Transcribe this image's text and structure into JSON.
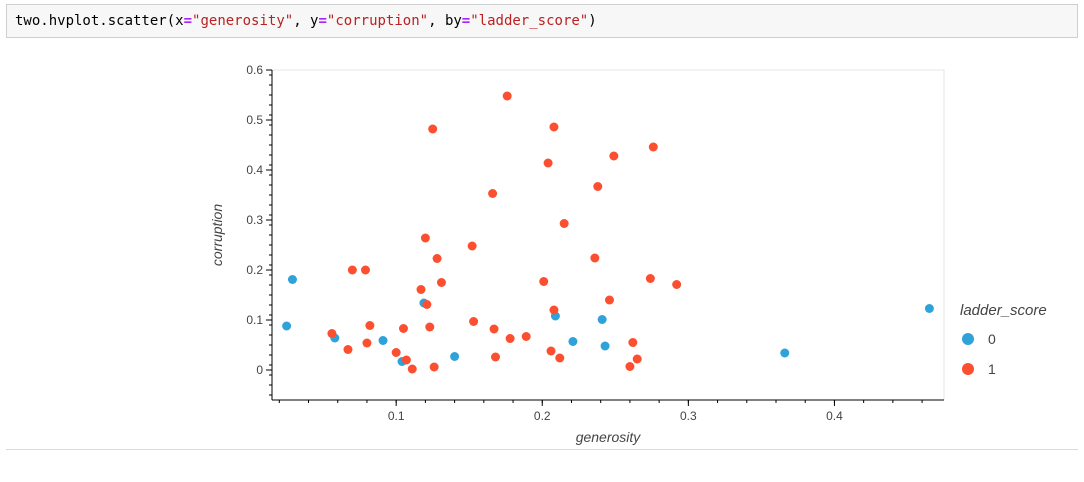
{
  "code_cell": {
    "prefix": "two.hvplot.scatter(",
    "arg_x_name": "x",
    "arg_x_value": "\"generosity\"",
    "arg_y_name": "y",
    "arg_y_value": "\"corruption\"",
    "arg_by_name": "by",
    "arg_by_value": "\"ladder_score\"",
    "sep": ", ",
    "eq": "=",
    "suffix": ")"
  },
  "colors": {
    "series_0": "#30a2da",
    "series_1": "#fc4f30",
    "axis": "#000000",
    "tick_text": "#444444",
    "label_text": "#444444",
    "code_bg": "#f7f7f7"
  },
  "chart_data": {
    "type": "scatter",
    "xlabel": "generosity",
    "ylabel": "corruption",
    "xlim": [
      0.015,
      0.475
    ],
    "ylim": [
      -0.06,
      0.6
    ],
    "xticks": [
      0.1,
      0.2,
      0.3,
      0.4
    ],
    "yticks": [
      0,
      0.1,
      0.2,
      0.3,
      0.4,
      0.5,
      0.6
    ],
    "grid": false,
    "legend": {
      "title": "ladder_score",
      "placement": "right"
    },
    "series": [
      {
        "name": "0",
        "points": [
          [
            0.025,
            0.088
          ],
          [
            0.029,
            0.181
          ],
          [
            0.058,
            0.064
          ],
          [
            0.091,
            0.059
          ],
          [
            0.104,
            0.017
          ],
          [
            0.119,
            0.134
          ],
          [
            0.14,
            0.027
          ],
          [
            0.209,
            0.108
          ],
          [
            0.221,
            0.057
          ],
          [
            0.241,
            0.101
          ],
          [
            0.243,
            0.048
          ],
          [
            0.366,
            0.034
          ],
          [
            0.465,
            0.123
          ]
        ]
      },
      {
        "name": "1",
        "points": [
          [
            0.056,
            0.073
          ],
          [
            0.067,
            0.041
          ],
          [
            0.07,
            0.2
          ],
          [
            0.08,
            0.054
          ],
          [
            0.079,
            0.2
          ],
          [
            0.082,
            0.089
          ],
          [
            0.1,
            0.035
          ],
          [
            0.105,
            0.083
          ],
          [
            0.107,
            0.02
          ],
          [
            0.111,
            0.002
          ],
          [
            0.117,
            0.161
          ],
          [
            0.12,
            0.264
          ],
          [
            0.121,
            0.131
          ],
          [
            0.123,
            0.086
          ],
          [
            0.125,
            0.482
          ],
          [
            0.126,
            0.006
          ],
          [
            0.128,
            0.223
          ],
          [
            0.131,
            0.175
          ],
          [
            0.152,
            0.248
          ],
          [
            0.153,
            0.097
          ],
          [
            0.166,
            0.353
          ],
          [
            0.167,
            0.082
          ],
          [
            0.168,
            0.026
          ],
          [
            0.176,
            0.548
          ],
          [
            0.178,
            0.063
          ],
          [
            0.189,
            0.067
          ],
          [
            0.201,
            0.177
          ],
          [
            0.204,
            0.414
          ],
          [
            0.206,
            0.038
          ],
          [
            0.208,
            0.12
          ],
          [
            0.208,
            0.486
          ],
          [
            0.212,
            0.024
          ],
          [
            0.215,
            0.293
          ],
          [
            0.236,
            0.224
          ],
          [
            0.238,
            0.367
          ],
          [
            0.246,
            0.14
          ],
          [
            0.249,
            0.428
          ],
          [
            0.26,
            0.007
          ],
          [
            0.262,
            0.055
          ],
          [
            0.265,
            0.022
          ],
          [
            0.274,
            0.183
          ],
          [
            0.276,
            0.446
          ],
          [
            0.292,
            0.171
          ]
        ]
      }
    ]
  }
}
